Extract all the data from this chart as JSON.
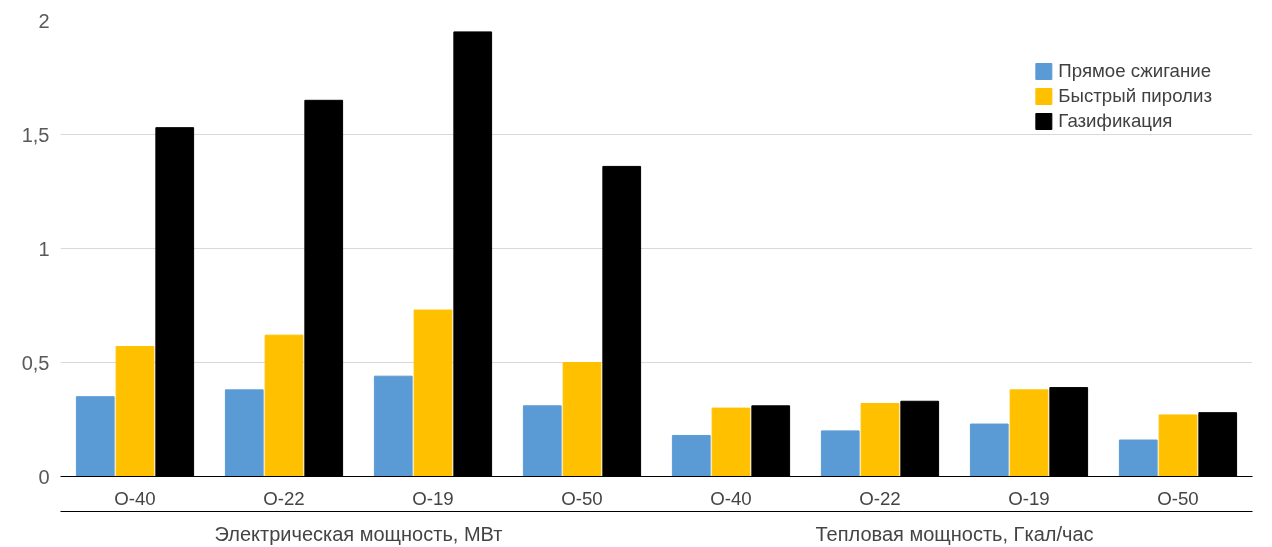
{
  "chart_data": {
    "type": "bar",
    "categories": [
      "O-40",
      "O-22",
      "O-19",
      "O-50",
      "O-40",
      "O-22",
      "O-19",
      "O-50"
    ],
    "series": [
      {
        "name": "Прямое сжигание",
        "color": "#5b9bd5",
        "values": [
          0.35,
          0.38,
          0.44,
          0.31,
          0.18,
          0.2,
          0.23,
          0.16
        ]
      },
      {
        "name": "Быстрый пиролиз",
        "color": "#ffc000",
        "values": [
          0.57,
          0.62,
          0.73,
          0.5,
          0.3,
          0.32,
          0.38,
          0.27
        ]
      },
      {
        "name": "Газификация",
        "color": "#000000",
        "values": [
          1.53,
          1.65,
          1.95,
          1.36,
          0.31,
          0.33,
          0.39,
          0.28
        ]
      }
    ],
    "ylim": [
      0,
      2
    ],
    "yticks": [
      0,
      {
        "value": 0.5,
        "label": "0,5"
      },
      1,
      {
        "value": 1.5,
        "label": "1,5"
      },
      2
    ],
    "grid": "y",
    "legend": "top right",
    "annotations": [
      "Электрическая мощность, МВт",
      "Тепловая мощность, Гкал/час"
    ]
  }
}
